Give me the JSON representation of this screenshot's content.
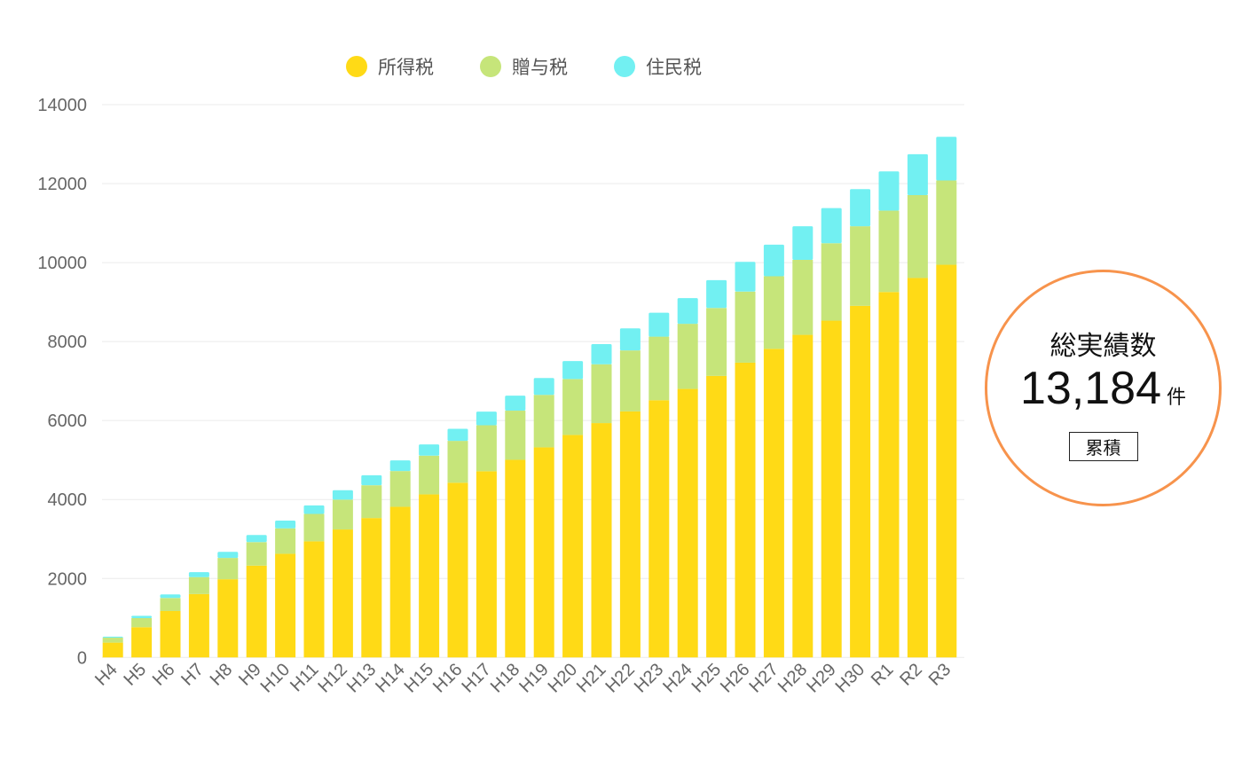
{
  "chart_data": {
    "type": "bar",
    "stacked": true,
    "categories": [
      "H4",
      "H5",
      "H6",
      "H7",
      "H8",
      "H9",
      "H10",
      "H11",
      "H12",
      "H13",
      "H14",
      "H15",
      "H16",
      "H17",
      "H18",
      "H19",
      "H20",
      "H21",
      "H22",
      "H23",
      "H24",
      "H25",
      "H26",
      "H27",
      "H28",
      "H29",
      "H30",
      "R1",
      "R2",
      "R3"
    ],
    "series": [
      {
        "name": "所得税",
        "color": "#FFDA16",
        "values": [
          375,
          765,
          1175,
          1605,
          1980,
          2325,
          2625,
          2940,
          3240,
          3530,
          3815,
          4130,
          4425,
          4715,
          5005,
          5320,
          5635,
          5935,
          6230,
          6515,
          6800,
          7130,
          7465,
          7815,
          8170,
          8530,
          8905,
          9255,
          9610,
          9945
        ]
      },
      {
        "name": "贈与税",
        "color": "#C6E57A",
        "values": [
          125,
          230,
          330,
          430,
          540,
          595,
          645,
          695,
          755,
          830,
          905,
          980,
          1060,
          1165,
          1245,
          1330,
          1415,
          1490,
          1545,
          1610,
          1650,
          1720,
          1800,
          1840,
          1900,
          1960,
          2015,
          2060,
          2100,
          2135
        ]
      },
      {
        "name": "住民税",
        "color": "#72F0F2",
        "values": [
          25,
          60,
          90,
          125,
          155,
          180,
          195,
          215,
          240,
          255,
          270,
          285,
          305,
          345,
          380,
          425,
          455,
          510,
          560,
          605,
          650,
          705,
          755,
          800,
          850,
          890,
          940,
          995,
          1035,
          1105
        ]
      }
    ],
    "ylim": [
      0,
      14000
    ],
    "yticks": [
      "0",
      "2000",
      "4000",
      "6000",
      "8000",
      "10000",
      "12000",
      "14000"
    ],
    "grid": true,
    "legend_position": "top",
    "xlabel": "",
    "ylabel": ""
  },
  "summary": {
    "title": "総実績数",
    "value": "13,184",
    "unit": "件",
    "badge": "累積",
    "border_color": "#F7934C"
  }
}
